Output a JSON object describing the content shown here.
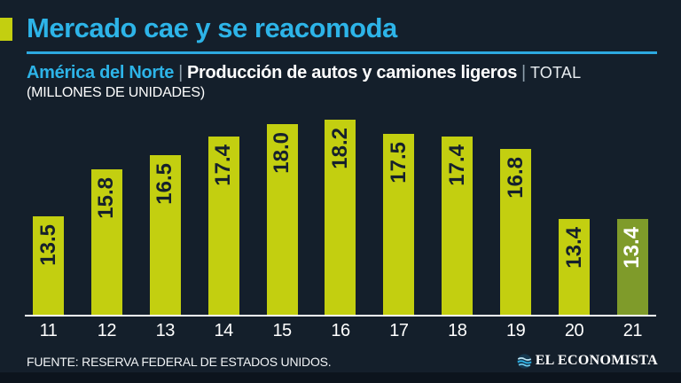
{
  "header": {
    "title": "Mercado cae y se reacomoda",
    "region": "América del Norte",
    "divider": "|",
    "measure": "Producción de autos y camiones ligeros",
    "scope": "TOTAL",
    "units": "(MILLONES DE UNIDADES)"
  },
  "chart_data": {
    "type": "bar",
    "title": "Mercado cae y se reacomoda",
    "subtitle": "América del Norte | Producción de autos y camiones ligeros | TOTAL",
    "unit": "MILLONES DE UNIDADES",
    "categories": [
      "11",
      "12",
      "13",
      "14",
      "15",
      "16",
      "17",
      "18",
      "19",
      "20",
      "21"
    ],
    "values": [
      13.5,
      15.8,
      16.5,
      17.4,
      18.0,
      18.2,
      17.5,
      17.4,
      16.8,
      13.4,
      13.4
    ],
    "value_labels": [
      "13.5",
      "15.8",
      "16.5",
      "17.4",
      "18.0",
      "18.2",
      "17.5",
      "17.4",
      "16.8",
      "13.4",
      "13.4"
    ],
    "xlabel": "",
    "ylabel": "",
    "ylim": [
      8.7,
      18.2
    ],
    "grid": false,
    "legend": false,
    "bar_color": "#c3cf10",
    "highlight_index": 10,
    "highlight_color": "#7f9b2a",
    "value_label_color": "#15202c",
    "highlight_value_label_color": "#ffffff"
  },
  "footer": {
    "source": "FUENTE: RESERVA FEDERAL DE ESTADOS UNIDOS.",
    "brand": "EL ECONOMISTA"
  },
  "colors": {
    "background": "#141f2b",
    "accent_cyan": "#2db4e8",
    "bar_yellow": "#c3cf10",
    "bar_olive": "#7f9b2a",
    "axis_white": "#ffffff"
  }
}
